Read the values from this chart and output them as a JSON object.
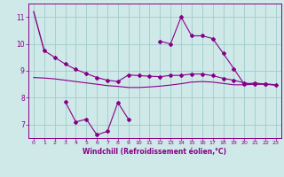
{
  "xlabel": "Windchill (Refroidissement éolien,°C)",
  "background_color": "#cfe8e8",
  "grid_color": "#a0cccc",
  "line_color": "#880088",
  "x": [
    0,
    1,
    2,
    3,
    4,
    5,
    6,
    7,
    8,
    9,
    10,
    11,
    12,
    13,
    14,
    15,
    16,
    17,
    18,
    19,
    20,
    21,
    22,
    23
  ],
  "line1": [
    11.2,
    9.75,
    null,
    null,
    null,
    null,
    null,
    null,
    null,
    null,
    null,
    null,
    null,
    null,
    null,
    null,
    null,
    null,
    null,
    null,
    null,
    null,
    null,
    null
  ],
  "line2": [
    null,
    9.75,
    9.5,
    9.25,
    9.05,
    8.9,
    8.75,
    8.65,
    8.6,
    8.85,
    8.82,
    8.8,
    8.78,
    8.83,
    8.83,
    8.88,
    8.88,
    8.82,
    8.72,
    8.65,
    8.55,
    8.5,
    8.52,
    8.48
  ],
  "line3": [
    8.75,
    8.73,
    8.7,
    8.65,
    8.6,
    8.55,
    8.5,
    8.45,
    8.42,
    8.38,
    8.38,
    8.4,
    8.43,
    8.47,
    8.52,
    8.58,
    8.6,
    8.58,
    8.53,
    8.48,
    8.48,
    8.5,
    8.5,
    8.46
  ],
  "line4": [
    null,
    null,
    null,
    7.85,
    7.1,
    7.2,
    6.62,
    6.75,
    7.82,
    7.2,
    null,
    null,
    10.1,
    10.0,
    11.0,
    10.3,
    10.3,
    10.2,
    9.65,
    9.08,
    8.5,
    8.55,
    8.5,
    null
  ],
  "ylim": [
    6.5,
    11.5
  ],
  "yticks": [
    7,
    8,
    9,
    10,
    11
  ],
  "xticks": [
    0,
    1,
    2,
    3,
    4,
    5,
    6,
    7,
    8,
    9,
    10,
    11,
    12,
    13,
    14,
    15,
    16,
    17,
    18,
    19,
    20,
    21,
    22,
    23
  ]
}
